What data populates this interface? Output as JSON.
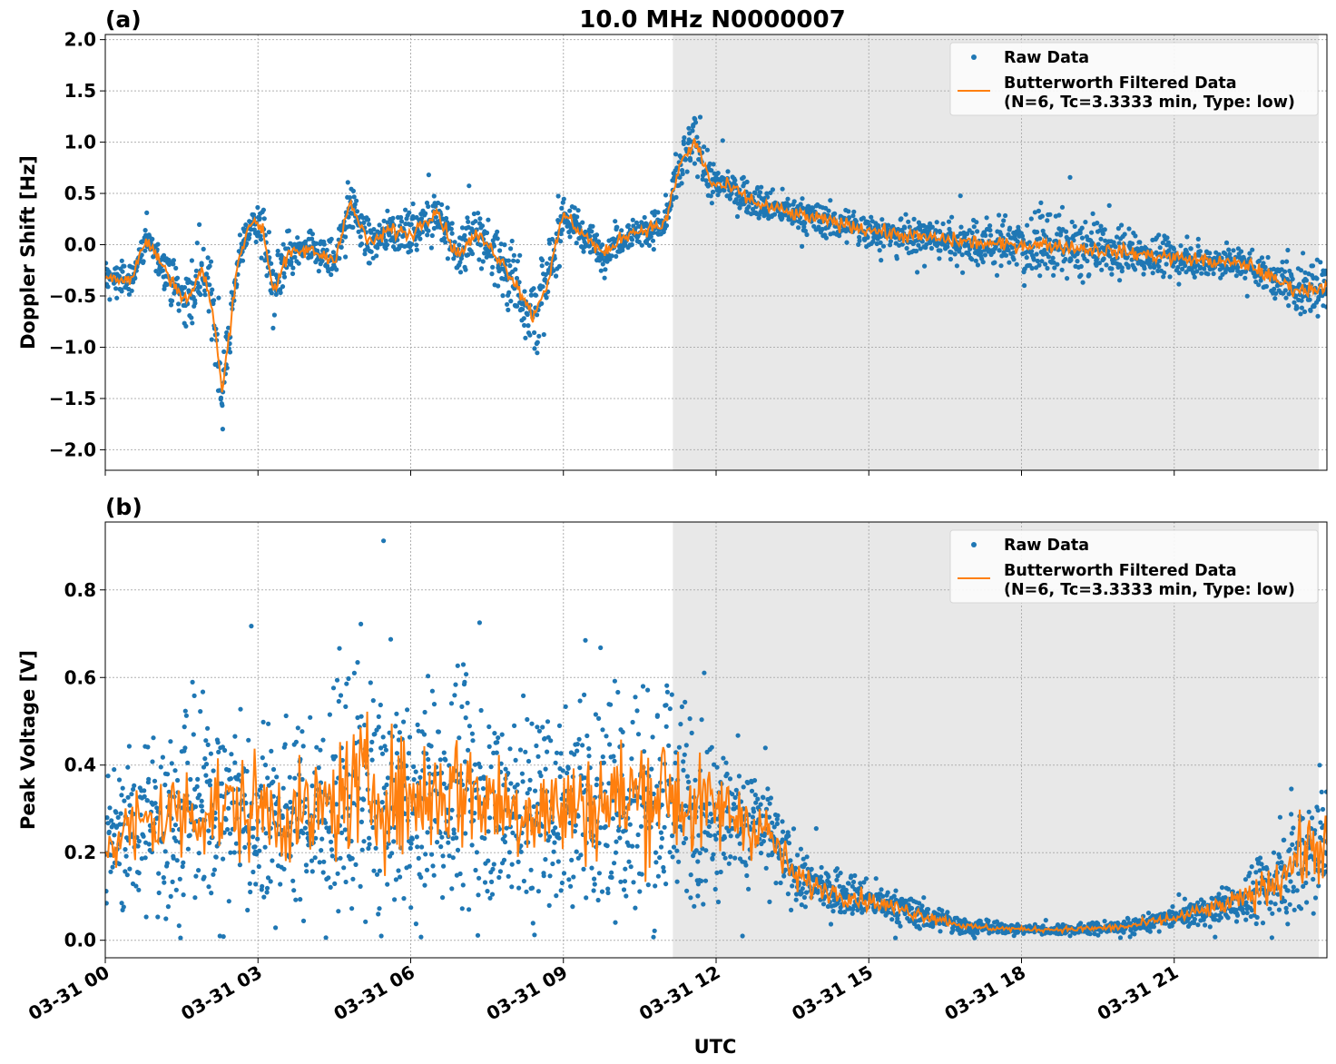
{
  "figure": {
    "title": "10.0 MHz N0000007",
    "xlabel": "UTC"
  },
  "colors": {
    "raw": "#1f77b4",
    "filtered": "#ff7f0e",
    "night_shade": "#e8e8e8",
    "grid": "#b0b0b0"
  },
  "chart_data": [
    {
      "type": "scatter",
      "panel_label": "(a)",
      "ylabel": "Doppler Shift [Hz]",
      "xlim_hours": [
        0,
        24
      ],
      "ylim": [
        -2.2,
        2.05
      ],
      "y_ticks": [
        -2.0,
        -1.5,
        -1.0,
        -0.5,
        0.0,
        0.5,
        1.0,
        1.5,
        2.0
      ],
      "y_tick_labels": [
        "−2.0",
        "−1.5",
        "−1.0",
        "−0.5",
        "0.0",
        "0.5",
        "1.0",
        "1.5",
        "2.0"
      ],
      "grid": true,
      "legend_position": "top-right",
      "shaded_region_hours": [
        11.15,
        24
      ],
      "series": [
        {
          "name": "Raw Data",
          "kind": "scatter",
          "x_hours": [
            0,
            0.5,
            0.8,
            1.0,
            1.3,
            1.6,
            1.9,
            2.1,
            2.3,
            2.6,
            2.9,
            3.1,
            3.3,
            3.6,
            4.0,
            4.5,
            4.8,
            5.2,
            5.6,
            6.0,
            6.5,
            6.9,
            7.3,
            7.7,
            8.1,
            8.4,
            8.7,
            9.0,
            9.4,
            9.8,
            10.2,
            10.6,
            11.0,
            11.3,
            11.6,
            11.9,
            12.3,
            12.8,
            13.5,
            14.5,
            15.5,
            16.5,
            17.5,
            18.5,
            19.5,
            20.5,
            21.5,
            22.5,
            23.0,
            23.5,
            24.0
          ],
          "y": [
            -0.3,
            -0.35,
            0.05,
            -0.1,
            -0.35,
            -0.55,
            -0.25,
            -0.6,
            -1.45,
            -0.15,
            0.25,
            0.15,
            -0.45,
            -0.1,
            -0.05,
            -0.15,
            0.4,
            0.0,
            0.15,
            0.1,
            0.35,
            -0.1,
            0.1,
            -0.1,
            -0.4,
            -0.7,
            -0.35,
            0.3,
            0.1,
            -0.1,
            0.1,
            0.15,
            0.2,
            0.8,
            1.0,
            0.6,
            0.55,
            0.4,
            0.3,
            0.2,
            0.1,
            0.05,
            0.0,
            0.0,
            -0.05,
            -0.1,
            -0.15,
            -0.2,
            -0.35,
            -0.45,
            -0.4
          ],
          "spread": [
            0.12,
            0.15,
            0.15,
            0.15,
            0.2,
            0.3,
            0.25,
            0.3,
            0.3,
            0.2,
            0.15,
            0.2,
            0.35,
            0.2,
            0.15,
            0.2,
            0.25,
            0.2,
            0.2,
            0.2,
            0.2,
            0.25,
            0.3,
            0.3,
            0.4,
            0.5,
            0.3,
            0.25,
            0.15,
            0.15,
            0.15,
            0.15,
            0.15,
            0.25,
            0.25,
            0.2,
            0.15,
            0.15,
            0.15,
            0.15,
            0.15,
            0.2,
            0.25,
            0.3,
            0.25,
            0.2,
            0.15,
            0.15,
            0.18,
            0.25,
            0.25
          ]
        },
        {
          "name": "Butterworth Filtered Data\n(N=6, Tc=3.3333 min, Type: low)",
          "kind": "line",
          "x_hours": [
            0,
            0.5,
            0.8,
            1.0,
            1.3,
            1.6,
            1.9,
            2.1,
            2.3,
            2.6,
            2.9,
            3.1,
            3.3,
            3.6,
            4.0,
            4.5,
            4.8,
            5.2,
            5.6,
            6.0,
            6.5,
            6.9,
            7.3,
            7.7,
            8.1,
            8.4,
            8.7,
            9.0,
            9.4,
            9.8,
            10.2,
            10.6,
            11.0,
            11.3,
            11.6,
            11.9,
            12.3,
            12.8,
            13.5,
            14.5,
            15.5,
            16.5,
            17.5,
            18.5,
            19.5,
            20.5,
            21.5,
            22.5,
            23.0,
            23.5,
            24.0
          ],
          "y": [
            -0.3,
            -0.35,
            0.05,
            -0.1,
            -0.35,
            -0.55,
            -0.25,
            -0.6,
            -1.45,
            -0.15,
            0.25,
            0.15,
            -0.45,
            -0.1,
            -0.05,
            -0.15,
            0.4,
            0.0,
            0.15,
            0.1,
            0.35,
            -0.1,
            0.1,
            -0.1,
            -0.4,
            -0.7,
            -0.35,
            0.3,
            0.1,
            -0.1,
            0.1,
            0.15,
            0.2,
            0.8,
            1.0,
            0.6,
            0.55,
            0.4,
            0.3,
            0.2,
            0.1,
            0.05,
            0.0,
            0.0,
            -0.05,
            -0.1,
            -0.15,
            -0.2,
            -0.35,
            -0.45,
            -0.4
          ],
          "jitter": 0.07
        }
      ]
    },
    {
      "type": "scatter",
      "panel_label": "(b)",
      "ylabel": "Peak Voltage [V]",
      "xlim_hours": [
        0,
        24
      ],
      "ylim": [
        -0.04,
        0.955
      ],
      "y_ticks": [
        0.0,
        0.2,
        0.4,
        0.6,
        0.8
      ],
      "y_tick_labels": [
        "0.0",
        "0.2",
        "0.4",
        "0.6",
        "0.8"
      ],
      "grid": true,
      "legend_position": "top-right",
      "shaded_region_hours": [
        11.15,
        24
      ],
      "series": [
        {
          "name": "Raw Data",
          "kind": "scatter",
          "x_hours": [
            0,
            1.0,
            2.0,
            3.0,
            4.0,
            5.0,
            6.0,
            7.0,
            8.0,
            9.0,
            10.0,
            11.0,
            11.5,
            12.0,
            12.5,
            13.0,
            13.5,
            14.0,
            15.0,
            16.0,
            17.0,
            18.0,
            19.0,
            20.0,
            21.0,
            22.0,
            22.5,
            23.0,
            23.5,
            24.0
          ],
          "y": [
            0.22,
            0.28,
            0.3,
            0.3,
            0.28,
            0.35,
            0.32,
            0.35,
            0.3,
            0.3,
            0.32,
            0.35,
            0.3,
            0.3,
            0.28,
            0.25,
            0.15,
            0.12,
            0.09,
            0.06,
            0.03,
            0.025,
            0.025,
            0.03,
            0.05,
            0.08,
            0.1,
            0.14,
            0.2,
            0.22
          ],
          "spread": [
            0.14,
            0.2,
            0.22,
            0.22,
            0.2,
            0.28,
            0.25,
            0.26,
            0.22,
            0.22,
            0.25,
            0.28,
            0.22,
            0.18,
            0.15,
            0.12,
            0.07,
            0.05,
            0.04,
            0.03,
            0.015,
            0.01,
            0.012,
            0.015,
            0.025,
            0.04,
            0.06,
            0.09,
            0.15,
            0.14
          ]
        },
        {
          "name": "Butterworth Filtered Data\n(N=6, Tc=3.3333 min, Type: low)",
          "kind": "line",
          "x_hours": [
            0,
            1.0,
            2.0,
            3.0,
            4.0,
            5.0,
            6.0,
            7.0,
            8.0,
            9.0,
            10.0,
            11.0,
            11.5,
            12.0,
            12.5,
            13.0,
            13.5,
            14.0,
            15.0,
            16.0,
            17.0,
            18.0,
            19.0,
            20.0,
            21.0,
            22.0,
            22.5,
            23.0,
            23.5,
            24.0
          ],
          "y": [
            0.22,
            0.28,
            0.3,
            0.3,
            0.28,
            0.35,
            0.32,
            0.35,
            0.3,
            0.3,
            0.32,
            0.35,
            0.3,
            0.3,
            0.28,
            0.25,
            0.15,
            0.12,
            0.09,
            0.06,
            0.03,
            0.025,
            0.025,
            0.03,
            0.05,
            0.08,
            0.1,
            0.14,
            0.2,
            0.22
          ],
          "jitter": 0.3
        }
      ]
    }
  ],
  "x_ticks_hours": [
    0,
    3,
    6,
    9,
    12,
    15,
    18,
    21
  ],
  "x_tick_labels": [
    "03-31 00",
    "03-31 03",
    "03-31 06",
    "03-31 09",
    "03-31 12",
    "03-31 15",
    "03-31 18",
    "03-31 21"
  ]
}
